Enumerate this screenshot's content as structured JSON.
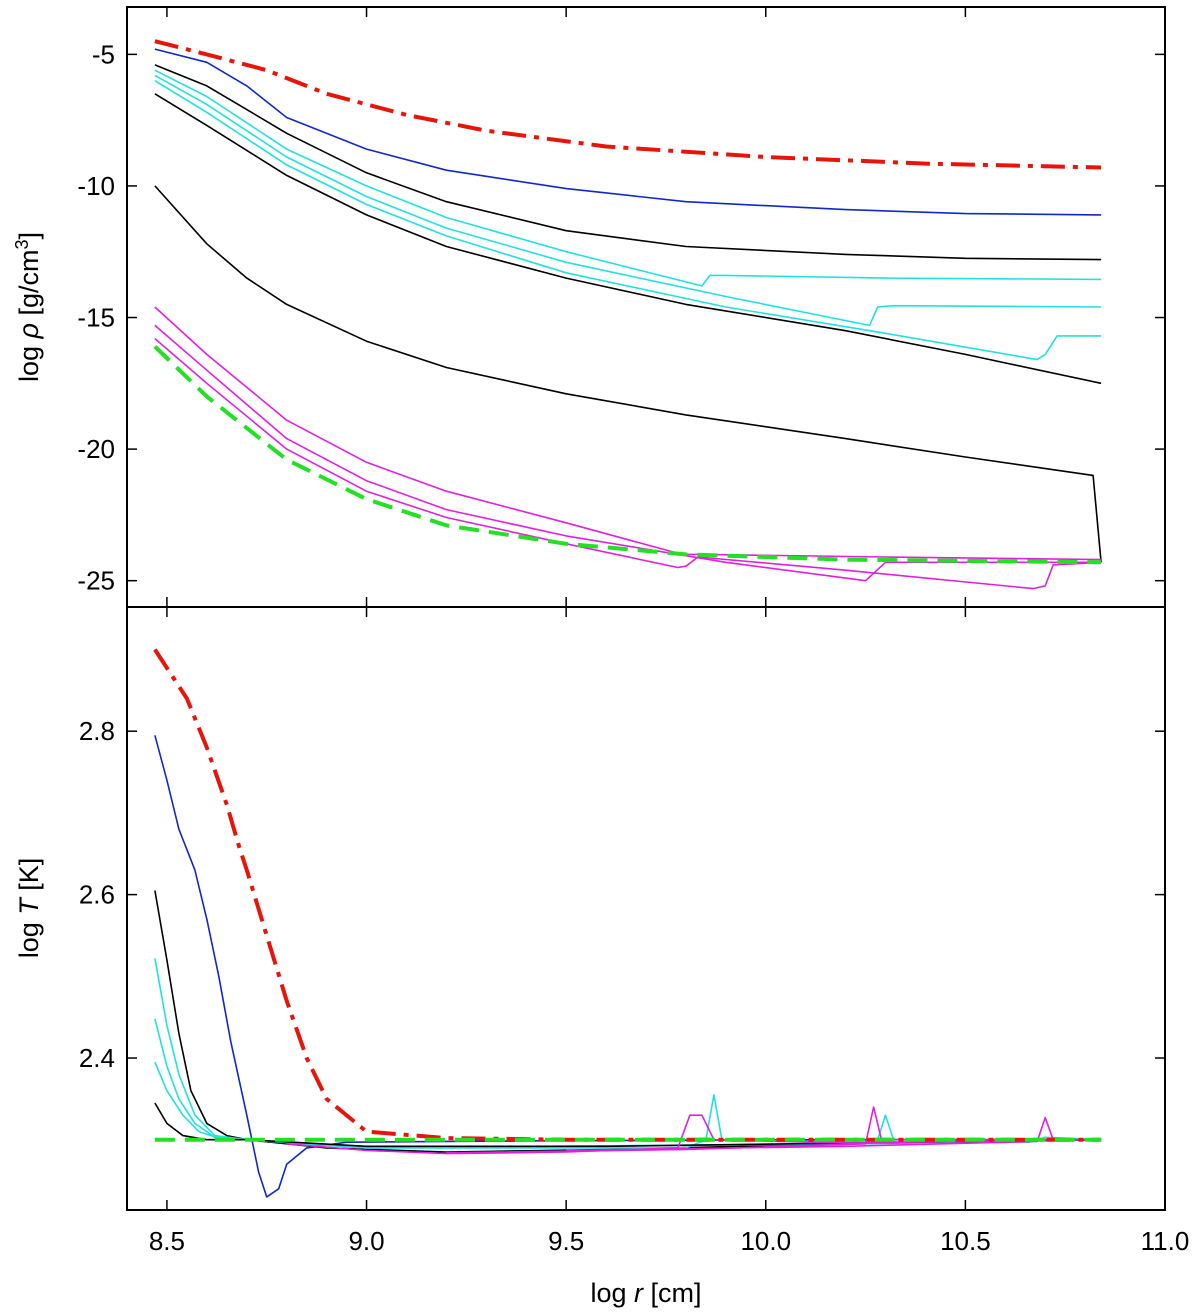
{
  "chart_data": [
    {
      "panel": "top",
      "type": "line",
      "ylabel_pre": "log ",
      "ylabel_sym": "ρ",
      "ylabel_post": " [g/cm",
      "ylabel_sup": "3",
      "ylabel_close": "]",
      "xlim": [
        8.4,
        11.0
      ],
      "ylim": [
        -26.0,
        -3.2
      ],
      "yticks": [
        -5,
        -10,
        -15,
        -20,
        -25
      ],
      "ytick_labels": [
        "-5",
        "-10",
        "-15",
        "-20",
        "-25"
      ],
      "series": [
        {
          "name": "red-dashdot",
          "color": "#e8140a",
          "width": 4,
          "dash": "24,8,5,8",
          "x": [
            8.47,
            8.6,
            8.75,
            8.9,
            9.1,
            9.3,
            9.6,
            10.0,
            10.4,
            10.84
          ],
          "y": [
            -4.5,
            -5.0,
            -5.6,
            -6.5,
            -7.3,
            -7.9,
            -8.5,
            -8.9,
            -9.15,
            -9.3
          ]
        },
        {
          "name": "blue",
          "color": "#1028c8",
          "width": 1.6,
          "dash": "",
          "x": [
            8.47,
            8.6,
            8.7,
            8.8,
            9.0,
            9.2,
            9.5,
            9.8,
            10.2,
            10.5,
            10.84
          ],
          "y": [
            -4.8,
            -5.3,
            -6.2,
            -7.4,
            -8.6,
            -9.4,
            -10.1,
            -10.6,
            -10.9,
            -11.05,
            -11.1
          ]
        },
        {
          "name": "black-1",
          "color": "#000000",
          "width": 1.6,
          "dash": "",
          "x": [
            8.47,
            8.6,
            8.7,
            8.8,
            9.0,
            9.2,
            9.5,
            9.8,
            10.2,
            10.5,
            10.84
          ],
          "y": [
            -5.4,
            -6.2,
            -7.1,
            -8.0,
            -9.5,
            -10.6,
            -11.7,
            -12.3,
            -12.6,
            -12.75,
            -12.8
          ]
        },
        {
          "name": "cyan-1",
          "color": "#22e0e0",
          "width": 1.6,
          "dash": "",
          "x": [
            8.47,
            8.6,
            8.8,
            9.0,
            9.2,
            9.5,
            9.84,
            9.86,
            9.9,
            10.3,
            10.84
          ],
          "y": [
            -5.6,
            -6.6,
            -8.6,
            -10.0,
            -11.2,
            -12.5,
            -13.8,
            -13.4,
            -13.4,
            -13.5,
            -13.55
          ]
        },
        {
          "name": "cyan-2",
          "color": "#22e0e0",
          "width": 1.6,
          "dash": "",
          "x": [
            8.47,
            8.6,
            8.8,
            9.0,
            9.2,
            9.5,
            9.9,
            10.26,
            10.28,
            10.32,
            10.84
          ],
          "y": [
            -5.8,
            -6.9,
            -8.9,
            -10.4,
            -11.6,
            -12.9,
            -14.2,
            -15.3,
            -14.6,
            -14.55,
            -14.6
          ]
        },
        {
          "name": "cyan-3",
          "color": "#22e0e0",
          "width": 1.6,
          "dash": "",
          "x": [
            8.47,
            8.6,
            8.8,
            9.0,
            9.2,
            9.5,
            9.9,
            10.3,
            10.68,
            10.7,
            10.73,
            10.84
          ],
          "y": [
            -6.0,
            -7.2,
            -9.2,
            -10.7,
            -11.9,
            -13.3,
            -14.6,
            -15.6,
            -16.6,
            -16.4,
            -15.7,
            -15.7
          ]
        },
        {
          "name": "black-2",
          "color": "#000000",
          "width": 1.6,
          "dash": "",
          "x": [
            8.47,
            8.6,
            8.8,
            9.0,
            9.2,
            9.5,
            9.8,
            10.2,
            10.5,
            10.84
          ],
          "y": [
            -6.5,
            -7.7,
            -9.6,
            -11.1,
            -12.3,
            -13.5,
            -14.5,
            -15.5,
            -16.4,
            -17.5
          ]
        },
        {
          "name": "black-3",
          "color": "#000000",
          "width": 1.6,
          "dash": "",
          "x": [
            8.47,
            8.6,
            8.7,
            8.8,
            9.0,
            9.2,
            9.5,
            9.8,
            10.2,
            10.5,
            10.82,
            10.84
          ],
          "y": [
            -10.0,
            -12.2,
            -13.5,
            -14.5,
            -15.9,
            -16.9,
            -17.9,
            -18.7,
            -19.6,
            -20.3,
            -21.0,
            -24.3
          ]
        },
        {
          "name": "magenta-1",
          "color": "#e020e0",
          "width": 1.6,
          "dash": "",
          "x": [
            8.47,
            8.6,
            8.8,
            9.0,
            9.2,
            9.5,
            9.79,
            9.81,
            9.84,
            10.3,
            10.84
          ],
          "y": [
            -14.6,
            -16.4,
            -18.9,
            -20.5,
            -21.6,
            -22.8,
            -24.0,
            -24.0,
            -24.0,
            -24.1,
            -24.2
          ]
        },
        {
          "name": "magenta-2",
          "color": "#e020e0",
          "width": 1.6,
          "dash": "",
          "x": [
            8.47,
            8.6,
            8.8,
            9.0,
            9.2,
            9.5,
            9.9,
            10.25,
            10.3,
            10.84
          ],
          "y": [
            -15.3,
            -17.0,
            -19.6,
            -21.2,
            -22.3,
            -23.3,
            -24.3,
            -25.0,
            -24.3,
            -24.3
          ]
        },
        {
          "name": "magenta-3",
          "color": "#e020e0",
          "width": 1.6,
          "dash": "",
          "x": [
            8.47,
            8.6,
            8.8,
            9.0,
            9.2,
            9.5,
            9.78,
            9.8,
            9.83,
            10.2,
            10.67,
            10.7,
            10.72,
            10.84
          ],
          "y": [
            -15.8,
            -17.5,
            -20.0,
            -21.6,
            -22.6,
            -23.6,
            -24.5,
            -24.45,
            -24.1,
            -24.6,
            -25.3,
            -25.2,
            -24.4,
            -24.3
          ]
        },
        {
          "name": "green-dashed",
          "color": "#22e022",
          "width": 4,
          "dash": "20,10",
          "x": [
            8.47,
            8.6,
            8.8,
            9.0,
            9.2,
            9.5,
            9.8,
            10.2,
            10.84
          ],
          "y": [
            -16.1,
            -18.0,
            -20.4,
            -21.9,
            -22.9,
            -23.6,
            -24.0,
            -24.2,
            -24.3
          ]
        }
      ]
    },
    {
      "panel": "bottom",
      "type": "line",
      "ylabel_pre": "log ",
      "ylabel_sym": "T",
      "ylabel_post": " [K]",
      "ylabel_sup": "",
      "ylabel_close": "",
      "xlabel_pre": "log ",
      "xlabel_sym": "r",
      "xlabel_post": " [cm]",
      "xlim": [
        8.4,
        11.0
      ],
      "ylim": [
        2.214,
        2.952
      ],
      "xticks": [
        8.5,
        9.0,
        9.5,
        10.0,
        10.5,
        11.0
      ],
      "xtick_labels": [
        "8.5",
        "9.0",
        "9.5",
        "10.0",
        "10.5",
        "11.0"
      ],
      "yticks": [
        2.4,
        2.6,
        2.8
      ],
      "ytick_labels": [
        "2.4",
        "2.6",
        "2.8"
      ],
      "series": [
        {
          "name": "red-dashdot",
          "color": "#e8140a",
          "width": 4,
          "dash": "24,8,5,8",
          "x": [
            8.47,
            8.55,
            8.6,
            8.65,
            8.68,
            8.7,
            8.75,
            8.8,
            8.85,
            8.9,
            9.0,
            9.2,
            9.5,
            10.0,
            10.84
          ],
          "y": [
            2.9,
            2.84,
            2.78,
            2.71,
            2.66,
            2.63,
            2.55,
            2.47,
            2.4,
            2.35,
            2.31,
            2.302,
            2.3,
            2.3,
            2.3
          ]
        },
        {
          "name": "blue",
          "color": "#1028c8",
          "width": 1.6,
          "dash": "",
          "x": [
            8.47,
            8.5,
            8.53,
            8.57,
            8.6,
            8.63,
            8.66,
            8.7,
            8.73,
            8.75,
            8.78,
            8.8,
            8.85,
            8.95,
            9.2,
            9.6,
            10.2,
            10.84
          ],
          "y": [
            2.795,
            2.74,
            2.68,
            2.63,
            2.57,
            2.5,
            2.42,
            2.33,
            2.26,
            2.23,
            2.24,
            2.27,
            2.29,
            2.297,
            2.298,
            2.299,
            2.3,
            2.3
          ]
        },
        {
          "name": "black-1",
          "color": "#000000",
          "width": 1.6,
          "dash": "",
          "x": [
            8.47,
            8.5,
            8.53,
            8.56,
            8.6,
            8.65,
            8.7,
            8.9,
            9.2,
            9.6,
            10.2,
            10.84
          ],
          "y": [
            2.605,
            2.52,
            2.43,
            2.36,
            2.32,
            2.305,
            2.3,
            2.29,
            2.285,
            2.288,
            2.295,
            2.3
          ]
        },
        {
          "name": "cyan-1",
          "color": "#22e0e0",
          "width": 1.6,
          "dash": "",
          "x": [
            8.47,
            8.5,
            8.53,
            8.57,
            8.62,
            8.7,
            9.0,
            9.8,
            9.85,
            9.87,
            9.89,
            10.2,
            10.84
          ],
          "y": [
            2.522,
            2.44,
            2.38,
            2.33,
            2.305,
            2.3,
            2.29,
            2.29,
            2.3,
            2.355,
            2.3,
            2.297,
            2.3
          ]
        },
        {
          "name": "cyan-2",
          "color": "#22e0e0",
          "width": 1.6,
          "dash": "",
          "x": [
            8.47,
            8.5,
            8.53,
            8.57,
            8.62,
            8.7,
            9.0,
            10.26,
            10.28,
            10.3,
            10.32,
            10.84
          ],
          "y": [
            2.448,
            2.39,
            2.35,
            2.32,
            2.303,
            2.3,
            2.29,
            2.295,
            2.3,
            2.33,
            2.3,
            2.3
          ]
        },
        {
          "name": "cyan-3",
          "color": "#22e0e0",
          "width": 1.6,
          "dash": "",
          "x": [
            8.47,
            8.5,
            8.54,
            8.58,
            8.63,
            8.7,
            9.0,
            10.66,
            10.68,
            10.7,
            10.84
          ],
          "y": [
            2.395,
            2.36,
            2.33,
            2.31,
            2.302,
            2.3,
            2.29,
            2.297,
            2.3,
            2.303,
            2.3
          ]
        },
        {
          "name": "black-2",
          "color": "#000000",
          "width": 1.6,
          "dash": "",
          "x": [
            8.47,
            8.5,
            8.54,
            8.6,
            8.7,
            9.0,
            9.6,
            10.84
          ],
          "y": [
            2.345,
            2.32,
            2.305,
            2.3,
            2.3,
            2.292,
            2.292,
            2.3
          ]
        },
        {
          "name": "magenta-1",
          "color": "#e020e0",
          "width": 1.6,
          "dash": "",
          "x": [
            8.8,
            9.0,
            9.2,
            9.5,
            9.78,
            9.81,
            9.84,
            9.87,
            10.2,
            10.84
          ],
          "y": [
            2.295,
            2.287,
            2.283,
            2.285,
            2.29,
            2.33,
            2.33,
            2.3,
            2.296,
            2.3
          ]
        },
        {
          "name": "magenta-2",
          "color": "#e020e0",
          "width": 1.6,
          "dash": "",
          "x": [
            9.2,
            9.8,
            10.25,
            10.27,
            10.29,
            10.84
          ],
          "y": [
            2.284,
            2.288,
            2.295,
            2.34,
            2.3,
            2.3
          ]
        },
        {
          "name": "magenta-3",
          "color": "#e020e0",
          "width": 1.6,
          "dash": "",
          "x": [
            9.5,
            10.2,
            10.68,
            10.7,
            10.72,
            10.84
          ],
          "y": [
            2.287,
            2.292,
            2.298,
            2.327,
            2.3,
            2.3
          ]
        },
        {
          "name": "green-dashed",
          "color": "#22e022",
          "width": 4,
          "dash": "20,10",
          "x": [
            8.47,
            10.84
          ],
          "y": [
            2.3,
            2.3
          ]
        }
      ]
    }
  ]
}
